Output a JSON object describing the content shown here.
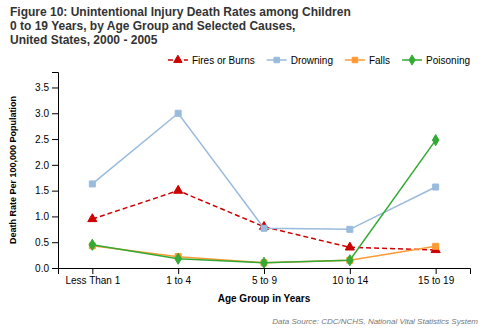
{
  "chart_data": {
    "type": "line",
    "title": "Figure 10: Unintentional Injury Death Rates among Children\n0 to 19 Years, by Age Group and Selected Causes,\nUnited States, 2000 - 2005",
    "x_label": "Age Group in Years",
    "y_label": "Death Rate Per 100,000 Population",
    "annotations": [
      "Data Source: CDC/NCHS, National Vital Statistics System"
    ],
    "categories": [
      "Less Than 1",
      "1 to 4",
      "5 to 9",
      "10 to 14",
      "15 to 19"
    ],
    "series": [
      {
        "name": "Fires or Burns",
        "color": "#CC0000",
        "marker": "triangle",
        "line_style": "dashed",
        "values": [
          0.95,
          1.5,
          0.8,
          0.4,
          0.35
        ]
      },
      {
        "name": "Drowning",
        "color": "#99BBDD",
        "marker": "square",
        "line_style": "solid",
        "values": [
          1.63,
          3.0,
          0.77,
          0.75,
          1.57
        ]
      },
      {
        "name": "Falls",
        "color": "#FF9933",
        "marker": "square",
        "line_style": "solid",
        "values": [
          0.43,
          0.22,
          0.1,
          0.15,
          0.42
        ]
      },
      {
        "name": "Poisoning",
        "color": "#33AA33",
        "marker": "diamond",
        "line_style": "solid",
        "values": [
          0.45,
          0.18,
          0.1,
          0.15,
          2.48
        ]
      }
    ],
    "ylim": [
      0,
      3.8
    ],
    "yticks": [
      {
        "value": 0,
        "label": "0.0"
      },
      0.5,
      {
        "value": 1,
        "label": "1.0"
      },
      1.5,
      {
        "value": 2,
        "label": "2.0"
      },
      2.5,
      {
        "value": 3,
        "label": "3.0"
      },
      3.5
    ],
    "grid": false,
    "legend": "upper right"
  }
}
